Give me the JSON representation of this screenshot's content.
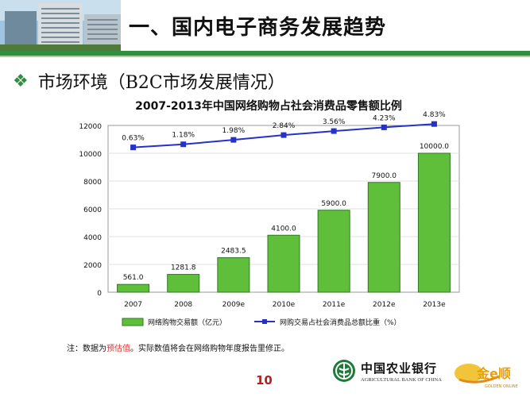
{
  "header": {
    "title": "一、国内电子商务发展趋势",
    "subtitle": "市场环境（B2C市场发展情况）"
  },
  "note": {
    "prefix": "注：数据为",
    "highlight": "预估值",
    "suffix": "。实际数值将会在网络购物年度报告里修正。"
  },
  "page_number": "10",
  "logos": {
    "bank_cn": "中国农业银行",
    "bank_en": "AGRICULTURAL BANK OF CHINA",
    "golden_cn": "金e顺",
    "golden_en": "GOLDEN ONLINE"
  },
  "colors": {
    "bar_fill": "#5fbf3a",
    "bar_stroke": "#2f7a22",
    "line": "#2432c8",
    "header_green": "#2f8f3e",
    "page_number": "#b32020"
  },
  "chart_data": {
    "type": "bar",
    "title": "2007-2013年中国网络购物占社会消费品零售额比例",
    "categories": [
      "2007",
      "2008",
      "2009e",
      "2010e",
      "2011e",
      "2012e",
      "2013e"
    ],
    "series": [
      {
        "name": "网络购物交易额（亿元）",
        "type": "bar",
        "values": [
          561.0,
          1281.8,
          2483.5,
          4100.0,
          5900.0,
          7900.0,
          10000.0
        ],
        "labels": [
          "561.0",
          "1281.8",
          "2483.5",
          "4100.0",
          "5900.0",
          "7900.0",
          "10000.0"
        ]
      },
      {
        "name": "网购交易占社会消费品总额比重（%）",
        "type": "line",
        "values": [
          0.63,
          1.18,
          1.98,
          2.84,
          3.56,
          4.23,
          4.83
        ],
        "labels": [
          "0.63%",
          "1.18%",
          "1.98%",
          "2.84%",
          "3.56%",
          "4.23%",
          "4.83%"
        ]
      }
    ],
    "ylim": [
      0,
      12000
    ],
    "yticks": [
      "0",
      "2000",
      "4000",
      "6000",
      "8000",
      "10000",
      "12000"
    ],
    "legend": "bottom"
  }
}
